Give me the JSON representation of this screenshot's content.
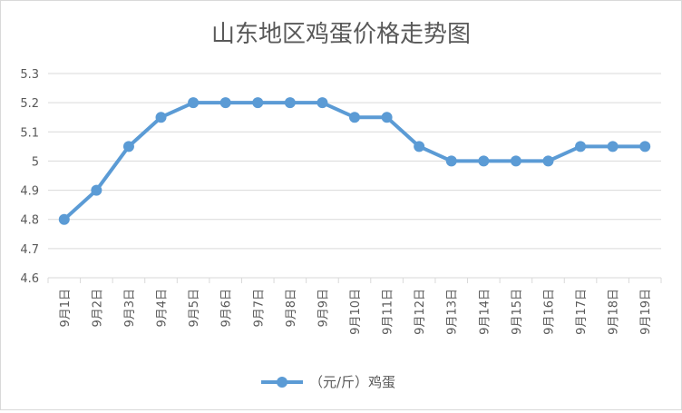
{
  "chart_data": {
    "type": "line",
    "title": "山东地区鸡蛋价格走势图",
    "categories": [
      "9月1日",
      "9月2日",
      "9月3日",
      "9月4日",
      "9月5日",
      "9月6日",
      "9月7日",
      "9月8日",
      "9月9日",
      "9月10日",
      "9月11日",
      "9月12日",
      "9月13日",
      "9月14日",
      "9月15日",
      "9月16日",
      "9月17日",
      "9月18日",
      "9月19日"
    ],
    "series": [
      {
        "name": "（元/斤）鸡蛋",
        "values": [
          4.8,
          4.9,
          5.05,
          5.15,
          5.2,
          5.2,
          5.2,
          5.2,
          5.2,
          5.15,
          5.15,
          5.05,
          5.0,
          5.0,
          5.0,
          5.0,
          5.05,
          5.05,
          5.05
        ]
      }
    ],
    "ylim": [
      4.6,
      5.3
    ],
    "yticks": [
      "4.6",
      "4.7",
      "4.8",
      "4.9",
      "5",
      "5.1",
      "5.2",
      "5.3"
    ],
    "grid": true,
    "legend_position": "bottom",
    "color": "#5b9bd5"
  }
}
